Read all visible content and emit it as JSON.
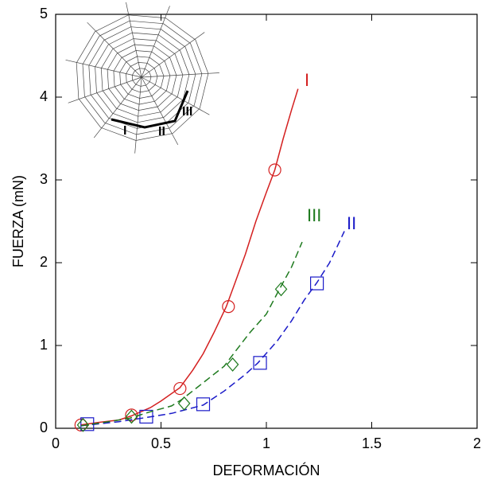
{
  "chart_data": {
    "type": "line",
    "xlabel": "DEFORMACIÓN",
    "ylabel": "FUERZA (mN)",
    "xlim": [
      0,
      2
    ],
    "ylim": [
      0,
      5
    ],
    "xticks": [
      0,
      0.5,
      1,
      1.5,
      2
    ],
    "yticks": [
      0,
      1,
      2,
      3,
      4,
      5
    ],
    "series": [
      {
        "name": "I",
        "color": "#d42020",
        "dashed": false,
        "marker": "circle",
        "x": [
          0.12,
          0.2,
          0.3,
          0.36,
          0.45,
          0.5,
          0.59,
          0.65,
          0.7,
          0.75,
          0.81,
          0.85,
          0.9,
          0.95,
          1.0,
          1.04,
          1.08,
          1.12,
          1.15
        ],
        "values": [
          0.04,
          0.07,
          0.1,
          0.15,
          0.25,
          0.33,
          0.49,
          0.7,
          0.9,
          1.15,
          1.47,
          1.75,
          2.1,
          2.5,
          2.85,
          3.12,
          3.5,
          3.85,
          4.1
        ],
        "marker_x": [
          0.12,
          0.36,
          0.59,
          0.82,
          1.04
        ],
        "marker_y": [
          0.04,
          0.16,
          0.48,
          1.47,
          3.12
        ]
      },
      {
        "name": "II",
        "color": "#1a1ac8",
        "dashed": true,
        "marker": "square",
        "x": [
          0.12,
          0.3,
          0.43,
          0.55,
          0.7,
          0.8,
          0.9,
          0.96,
          1.05,
          1.12,
          1.18,
          1.24,
          1.3,
          1.37
        ],
        "values": [
          0.03,
          0.08,
          0.13,
          0.18,
          0.28,
          0.45,
          0.65,
          0.79,
          1.05,
          1.3,
          1.55,
          1.76,
          2.0,
          2.38
        ],
        "marker_x": [
          0.15,
          0.43,
          0.7,
          0.97,
          1.24
        ],
        "marker_y": [
          0.05,
          0.14,
          0.29,
          0.79,
          1.75
        ]
      },
      {
        "name": "III",
        "color": "#1e7a1e",
        "dashed": true,
        "marker": "diamond",
        "x": [
          0.12,
          0.25,
          0.35,
          0.45,
          0.55,
          0.6,
          0.7,
          0.8,
          0.85,
          0.92,
          1.0,
          1.06,
          1.12,
          1.17
        ],
        "values": [
          0.03,
          0.08,
          0.12,
          0.2,
          0.27,
          0.35,
          0.55,
          0.75,
          0.92,
          1.15,
          1.38,
          1.67,
          1.95,
          2.25
        ],
        "marker_x": [
          0.13,
          0.36,
          0.61,
          0.84,
          1.07
        ],
        "marker_y": [
          0.04,
          0.14,
          0.3,
          0.77,
          1.68
        ]
      }
    ]
  }
}
